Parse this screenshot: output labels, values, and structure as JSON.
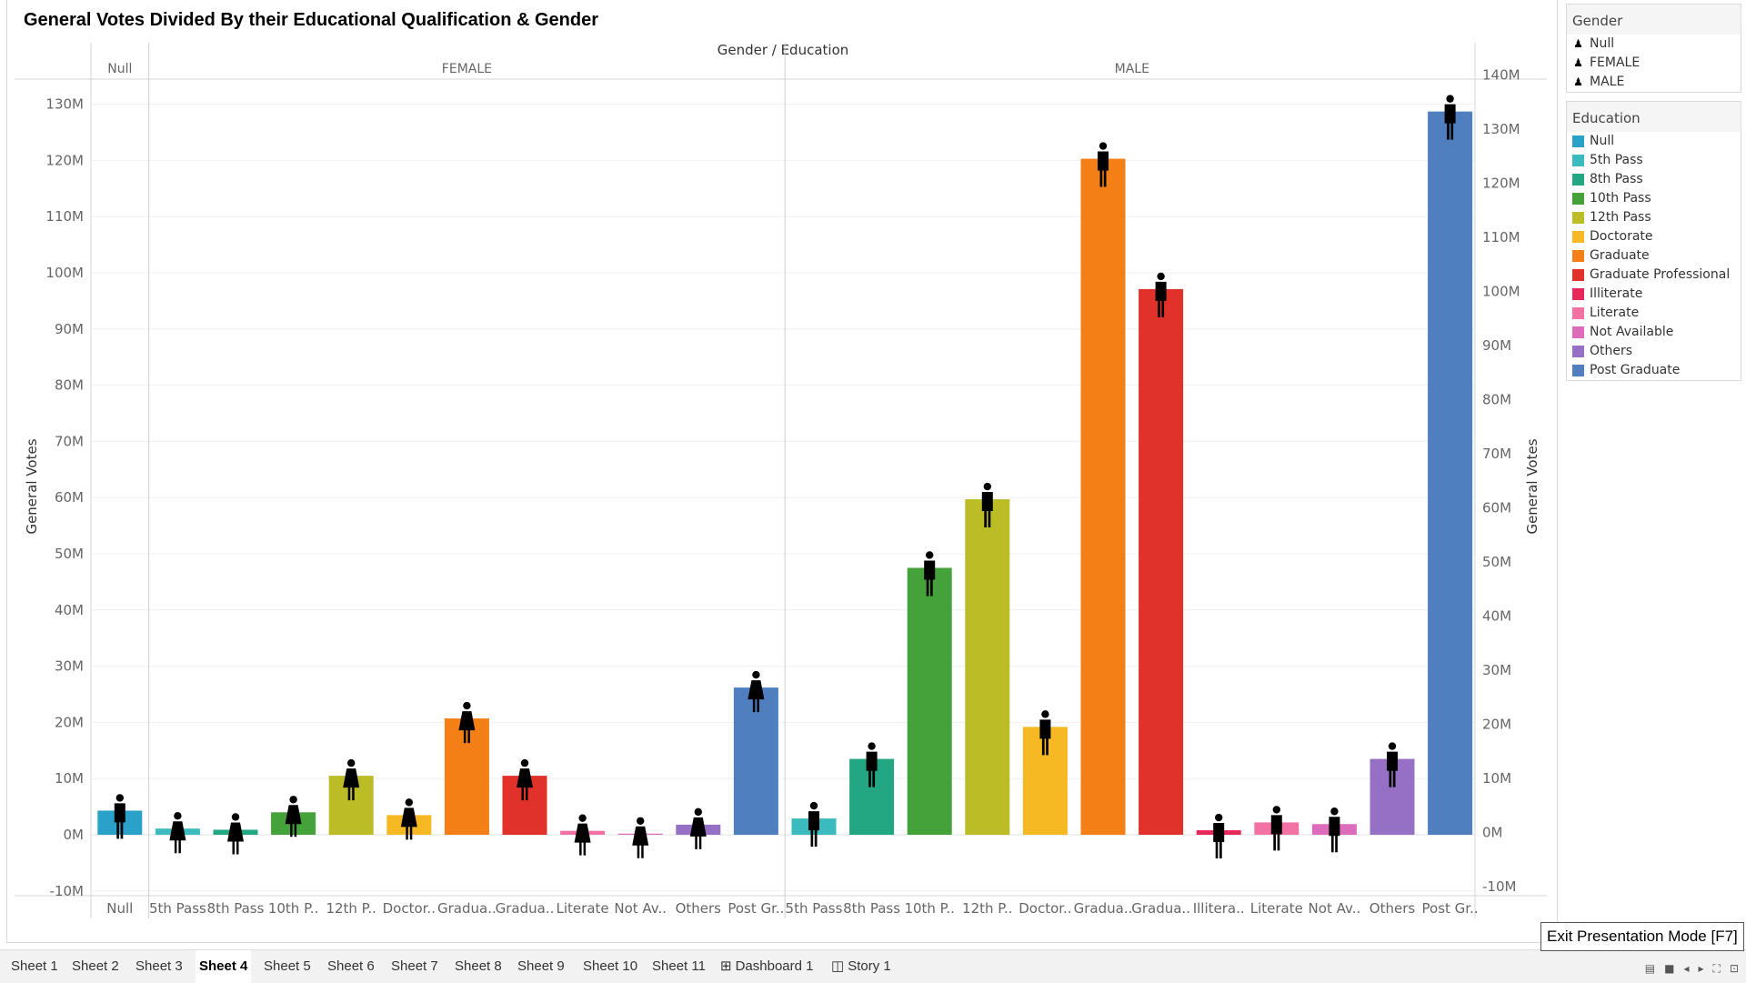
{
  "chart_data": {
    "type": "bar",
    "title": "General Votes Divided By their Educational Qualification & Gender",
    "header_label": "Gender / Education",
    "ylabel": "General Votes",
    "y_ticks_left": [
      "-10M",
      "0M",
      "10M",
      "20M",
      "30M",
      "40M",
      "50M",
      "60M",
      "70M",
      "80M",
      "90M",
      "100M",
      "110M",
      "120M",
      "130M"
    ],
    "y_ticks_right": [
      "-10M",
      "0M",
      "10M",
      "20M",
      "30M",
      "40M",
      "50M",
      "60M",
      "70M",
      "80M",
      "90M",
      "100M",
      "110M",
      "120M",
      "130M",
      "140M"
    ],
    "ylim": [
      -10,
      140
    ],
    "unit": "M",
    "panes": [
      {
        "gender": "Null",
        "bars": [
          {
            "education": "Null",
            "label": "Null",
            "value": 4.3,
            "color": "#2aa1c8"
          }
        ]
      },
      {
        "gender": "FEMALE",
        "bars": [
          {
            "education": "5th Pass",
            "label": "5th Pass",
            "value": 1.1,
            "color": "#3bbbbd"
          },
          {
            "education": "8th Pass",
            "label": "8th Pass",
            "value": 0.9,
            "color": "#23a783"
          },
          {
            "education": "10th Pass",
            "label": "10th P..",
            "value": 4.0,
            "color": "#45a23a"
          },
          {
            "education": "12th Pass",
            "label": "12th P..",
            "value": 10.5,
            "color": "#bbbc26"
          },
          {
            "education": "Doctorate",
            "label": "Doctor..",
            "value": 3.5,
            "color": "#f6b923"
          },
          {
            "education": "Graduate",
            "label": "Gradua..",
            "value": 20.7,
            "color": "#f47f16"
          },
          {
            "education": "Graduate Professional",
            "label": "Gradua..",
            "value": 10.5,
            "color": "#e0312b"
          },
          {
            "education": "Literate",
            "label": "Literate",
            "value": 0.7,
            "color": "#f372a4"
          },
          {
            "education": "Not Available",
            "label": "Not Av..",
            "value": 0.2,
            "color": "#de6cbd"
          },
          {
            "education": "Others",
            "label": "Others",
            "value": 1.8,
            "color": "#9670c4"
          },
          {
            "education": "Post Graduate",
            "label": "Post Gr..",
            "value": 26.2,
            "color": "#4f7fbf"
          }
        ]
      },
      {
        "gender": "MALE",
        "bars": [
          {
            "education": "5th Pass",
            "label": "5th Pass",
            "value": 2.9,
            "color": "#3bbbbd"
          },
          {
            "education": "8th Pass",
            "label": "8th Pass",
            "value": 13.5,
            "color": "#23a783"
          },
          {
            "education": "10th Pass",
            "label": "10th P..",
            "value": 47.5,
            "color": "#45a23a"
          },
          {
            "education": "12th Pass",
            "label": "12th P..",
            "value": 59.7,
            "color": "#bbbc26"
          },
          {
            "education": "Doctorate",
            "label": "Doctor..",
            "value": 19.2,
            "color": "#f6b923"
          },
          {
            "education": "Graduate",
            "label": "Gradua..",
            "value": 120.3,
            "color": "#f47f16"
          },
          {
            "education": "Graduate Professional",
            "label": "Gradua..",
            "value": 97.1,
            "color": "#e0312b"
          },
          {
            "education": "Illiterate",
            "label": "Illitera..",
            "value": 0.8,
            "color": "#e8285a"
          },
          {
            "education": "Literate",
            "label": "Literate",
            "value": 2.2,
            "color": "#f372a4"
          },
          {
            "education": "Not Available",
            "label": "Not Av..",
            "value": 1.9,
            "color": "#de6cbd"
          },
          {
            "education": "Others",
            "label": "Others",
            "value": 13.5,
            "color": "#9670c4"
          },
          {
            "education": "Post Graduate",
            "label": "Post Gr..",
            "value": 128.7,
            "color": "#4f7fbf"
          }
        ]
      }
    ],
    "grid": true,
    "legend_position": "right"
  },
  "legend_gender": {
    "title": "Gender",
    "items": [
      {
        "label": "Null",
        "icon": "person-icon"
      },
      {
        "label": "FEMALE",
        "icon": "female-icon"
      },
      {
        "label": "MALE",
        "icon": "male-icon"
      }
    ]
  },
  "legend_education": {
    "title": "Education",
    "items": [
      {
        "label": "Null",
        "color": "#2aa1c8"
      },
      {
        "label": "5th Pass",
        "color": "#3bbbbd"
      },
      {
        "label": "8th Pass",
        "color": "#23a783"
      },
      {
        "label": "10th Pass",
        "color": "#45a23a"
      },
      {
        "label": "12th Pass",
        "color": "#bbbc26"
      },
      {
        "label": "Doctorate",
        "color": "#f6b923"
      },
      {
        "label": "Graduate",
        "color": "#f47f16"
      },
      {
        "label": "Graduate Professional",
        "color": "#e0312b"
      },
      {
        "label": "Illiterate",
        "color": "#e8285a"
      },
      {
        "label": "Literate",
        "color": "#f372a4"
      },
      {
        "label": "Not Available",
        "color": "#de6cbd"
      },
      {
        "label": "Others",
        "color": "#9670c4"
      },
      {
        "label": "Post Graduate",
        "color": "#4f7fbf"
      }
    ]
  },
  "tabs": [
    {
      "label": "Sheet 1"
    },
    {
      "label": "Sheet 2"
    },
    {
      "label": "Sheet 3"
    },
    {
      "label": "Sheet 4",
      "active": true
    },
    {
      "label": "Sheet 5"
    },
    {
      "label": "Sheet 6"
    },
    {
      "label": "Sheet 7"
    },
    {
      "label": "Sheet 8"
    },
    {
      "label": "Sheet 9"
    },
    {
      "label": "Sheet 10"
    },
    {
      "label": "Sheet 11"
    },
    {
      "label": "Dashboard 1",
      "icon": "dashboard-icon",
      "glyph": "⊞"
    },
    {
      "label": "Story 1",
      "icon": "story-icon",
      "glyph": "◫"
    }
  ],
  "tooltip": {
    "text": "Exit Presentation Mode [F7]"
  },
  "nav_icons": [
    {
      "icon": "sheet-sorter-icon",
      "glyph": "▤"
    },
    {
      "icon": "filmstrip-icon",
      "glyph": "■"
    },
    {
      "icon": "prev-sheet-icon",
      "glyph": "◂"
    },
    {
      "icon": "next-sheet-icon",
      "glyph": "▸"
    },
    {
      "icon": "fullscreen-icon",
      "glyph": "⛶"
    },
    {
      "icon": "presentation-mode-icon",
      "glyph": "⊡"
    }
  ]
}
